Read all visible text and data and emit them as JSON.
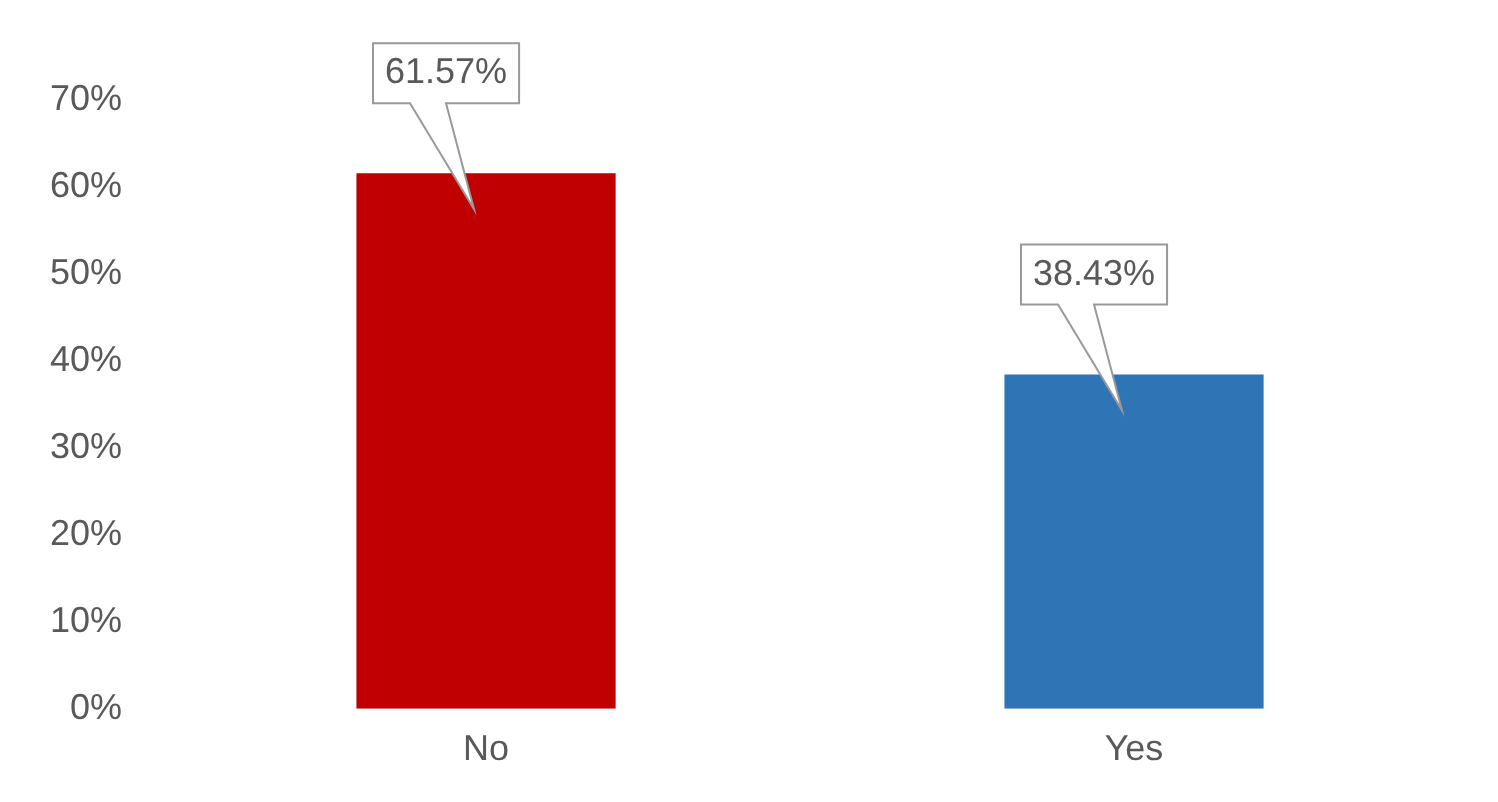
{
  "chart_data": {
    "type": "bar",
    "categories": [
      "No",
      "Yes"
    ],
    "values": [
      61.57,
      38.43
    ],
    "colors": [
      "#c00000",
      "#2e75b6"
    ],
    "value_labels": [
      "61.57%",
      "38.43%"
    ],
    "ylim": [
      0,
      70
    ],
    "yticks": [
      {
        "value": 0,
        "label": "0%"
      },
      {
        "value": 10,
        "label": "10%"
      },
      {
        "value": 20,
        "label": "20%"
      },
      {
        "value": 30,
        "label": "30%"
      },
      {
        "value": 40,
        "label": "40%"
      },
      {
        "value": 50,
        "label": "50%"
      },
      {
        "value": 60,
        "label": "60%"
      },
      {
        "value": 70,
        "label": "70%"
      }
    ],
    "grid": false,
    "legend": false
  }
}
